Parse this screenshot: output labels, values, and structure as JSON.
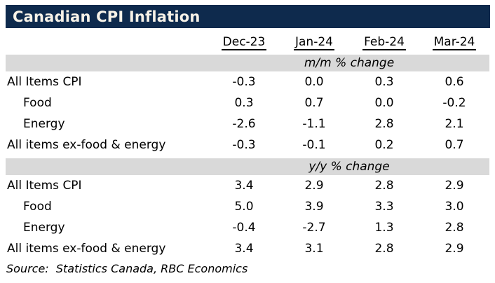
{
  "chart_data": {
    "type": "table",
    "title": "Canadian CPI Inflation",
    "columns": [
      "Dec-23",
      "Jan-24",
      "Feb-24",
      "Mar-24"
    ],
    "sections": [
      {
        "header": "m/m % change",
        "rows": [
          {
            "label": "All Items CPI",
            "values": [
              "-0.3",
              "0.0",
              "0.3",
              "0.6"
            ]
          },
          {
            "label": "Food",
            "values": [
              "0.3",
              "0.7",
              "0.0",
              "-0.2"
            ]
          },
          {
            "label": "Energy",
            "values": [
              "-2.6",
              "-1.1",
              "2.8",
              "2.1"
            ]
          },
          {
            "label": "All items ex-food & energy",
            "values": [
              "-0.3",
              "-0.1",
              "0.2",
              "0.7"
            ]
          }
        ]
      },
      {
        "header": "y/y % change",
        "rows": [
          {
            "label": "All Items CPI",
            "values": [
              "3.4",
              "2.9",
              "2.8",
              "2.9"
            ]
          },
          {
            "label": "Food",
            "values": [
              "5.0",
              "3.9",
              "3.3",
              "3.0"
            ]
          },
          {
            "label": "Energy",
            "values": [
              "-0.4",
              "-2.7",
              "1.3",
              "2.8"
            ]
          },
          {
            "label": "All items ex-food & energy",
            "values": [
              "3.4",
              "3.1",
              "2.8",
              "2.9"
            ]
          }
        ]
      }
    ],
    "source": "Source:  Statistics Canada, RBC Economics"
  },
  "colors": {
    "title_bg": "#0e2a4d",
    "title_text": "#f7f2e8",
    "section_band_bg": "#d9d9d9",
    "text": "#000000"
  }
}
